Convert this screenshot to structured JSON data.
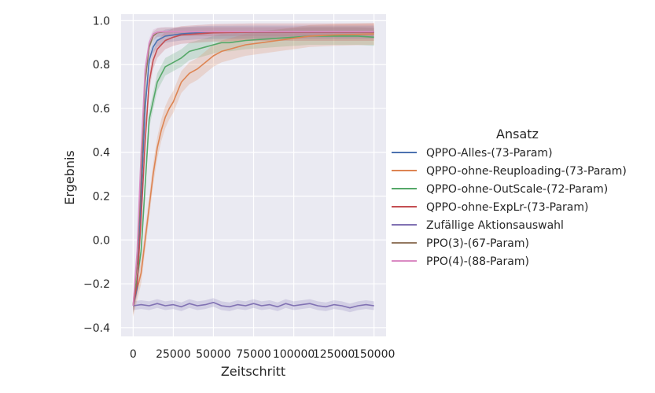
{
  "chart_data": {
    "type": "line",
    "xlabel": "Zeitschritt",
    "ylabel": "Ergebnis",
    "xlim": [
      -7500,
      157500
    ],
    "ylim": [
      -0.44,
      1.03
    ],
    "xticks": [
      0,
      25000,
      50000,
      75000,
      100000,
      125000,
      150000
    ],
    "xtick_labels": [
      "0",
      "25000",
      "50000",
      "75000",
      "100000",
      "125000",
      "150000"
    ],
    "yticks": [
      -0.4,
      -0.2,
      0.0,
      0.2,
      0.4,
      0.6,
      0.8,
      1.0
    ],
    "ytick_labels": [
      "−0.4",
      "−0.2",
      "0.0",
      "0.2",
      "0.4",
      "0.6",
      "0.8",
      "1.0"
    ],
    "grid": true,
    "legend_title": "Ansatz",
    "legend_position": "right",
    "series": [
      {
        "name": "QPPO-Alles-(73-Param)",
        "color": "#4c72b0",
        "x": [
          0,
          2500,
          5000,
          7500,
          10000,
          12500,
          15000,
          20000,
          25000,
          30000,
          40000,
          50000,
          75000,
          100000,
          125000,
          150000
        ],
        "y": [
          -0.3,
          -0.22,
          0.2,
          0.6,
          0.82,
          0.88,
          0.91,
          0.93,
          0.935,
          0.94,
          0.945,
          0.947,
          0.948,
          0.948,
          0.948,
          0.948
        ],
        "band": 0.03
      },
      {
        "name": "QPPO-ohne-Reuploading-(73-Param)",
        "color": "#dd8452",
        "x": [
          0,
          5000,
          10000,
          12500,
          15000,
          17500,
          20000,
          22500,
          25000,
          30000,
          35000,
          40000,
          45000,
          50000,
          55000,
          60000,
          70000,
          80000,
          90000,
          100000,
          110000,
          125000,
          150000
        ],
        "y": [
          -0.3,
          -0.15,
          0.15,
          0.3,
          0.42,
          0.5,
          0.56,
          0.6,
          0.63,
          0.72,
          0.76,
          0.78,
          0.81,
          0.84,
          0.86,
          0.87,
          0.89,
          0.9,
          0.91,
          0.92,
          0.93,
          0.935,
          0.94
        ],
        "band": 0.05
      },
      {
        "name": "QPPO-ohne-OutScale-(72-Param)",
        "color": "#55a868",
        "x": [
          0,
          5000,
          10000,
          15000,
          20000,
          25000,
          30000,
          35000,
          40000,
          45000,
          50000,
          55000,
          60000,
          70000,
          80000,
          90000,
          100000,
          110000,
          125000,
          140000,
          150000
        ],
        "y": [
          -0.3,
          -0.05,
          0.55,
          0.72,
          0.79,
          0.81,
          0.83,
          0.86,
          0.87,
          0.88,
          0.89,
          0.9,
          0.9,
          0.91,
          0.915,
          0.92,
          0.925,
          0.93,
          0.93,
          0.93,
          0.925
        ],
        "band": 0.04
      },
      {
        "name": "QPPO-ohne-ExpLr-(73-Param)",
        "color": "#c44e52",
        "x": [
          0,
          2500,
          5000,
          7500,
          10000,
          12500,
          15000,
          20000,
          25000,
          30000,
          40000,
          50000,
          75000,
          100000,
          125000,
          150000
        ],
        "y": [
          -0.3,
          -0.2,
          0.1,
          0.45,
          0.72,
          0.82,
          0.87,
          0.91,
          0.925,
          0.935,
          0.94,
          0.945,
          0.948,
          0.948,
          0.948,
          0.948
        ],
        "band": 0.04
      },
      {
        "name": "Zufällige Aktionsauswahl",
        "color": "#8172b3",
        "x": [
          0,
          5000,
          10000,
          15000,
          20000,
          25000,
          30000,
          35000,
          40000,
          45000,
          50000,
          55000,
          60000,
          65000,
          70000,
          75000,
          80000,
          85000,
          90000,
          95000,
          100000,
          105000,
          110000,
          115000,
          120000,
          125000,
          130000,
          135000,
          140000,
          145000,
          150000
        ],
        "y": [
          -0.3,
          -0.295,
          -0.3,
          -0.29,
          -0.3,
          -0.295,
          -0.305,
          -0.29,
          -0.3,
          -0.295,
          -0.285,
          -0.3,
          -0.305,
          -0.295,
          -0.3,
          -0.29,
          -0.3,
          -0.295,
          -0.305,
          -0.29,
          -0.3,
          -0.295,
          -0.29,
          -0.3,
          -0.305,
          -0.295,
          -0.3,
          -0.31,
          -0.3,
          -0.295,
          -0.3
        ],
        "band": 0.02
      },
      {
        "name": "PPO(3)-(67-Param)",
        "color": "#937860",
        "x": [
          0,
          2500,
          5000,
          7500,
          10000,
          12500,
          15000,
          17500,
          20000,
          25000,
          150000
        ],
        "y": [
          -0.3,
          -0.1,
          0.3,
          0.72,
          0.88,
          0.93,
          0.945,
          0.948,
          0.95,
          0.95,
          0.95
        ],
        "band": 0.02
      },
      {
        "name": "PPO(4)-(88-Param)",
        "color": "#da8bc3",
        "x": [
          0,
          2500,
          5000,
          7500,
          10000,
          12500,
          15000,
          17500,
          20000,
          25000,
          150000
        ],
        "y": [
          -0.3,
          -0.05,
          0.4,
          0.78,
          0.9,
          0.94,
          0.948,
          0.95,
          0.95,
          0.95,
          0.95
        ],
        "band": 0.02
      }
    ]
  }
}
